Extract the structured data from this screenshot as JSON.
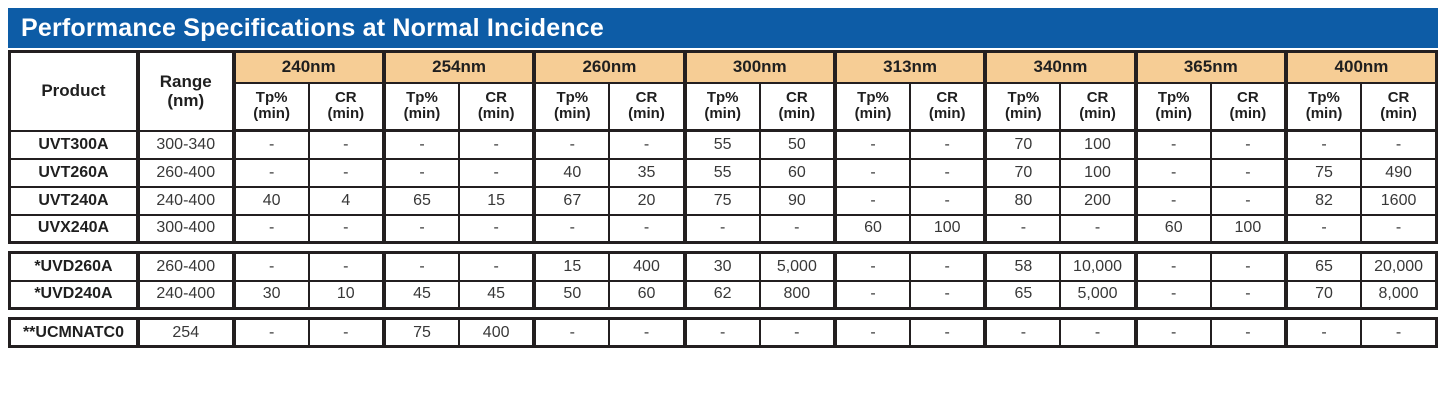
{
  "title": "Performance Specifications at Normal Incidence",
  "colors": {
    "title_bg": "#0d5ca6",
    "wavelength_bg": "#f6cd95",
    "border": "#231f20"
  },
  "header": {
    "product": "Product",
    "range": "Range\n(nm)",
    "tp": "Tp%\n(min)",
    "cr": "CR\n(min)",
    "wavelengths": [
      "240nm",
      "254nm",
      "260nm",
      "300nm",
      "313nm",
      "340nm",
      "365nm",
      "400nm"
    ]
  },
  "sections": [
    {
      "rows": [
        {
          "product": "UVT300A",
          "range": "300-340",
          "values": [
            "-",
            "-",
            "-",
            "-",
            "-",
            "-",
            "55",
            "50",
            "-",
            "-",
            "70",
            "100",
            "-",
            "-",
            "-",
            "-"
          ]
        },
        {
          "product": "UVT260A",
          "range": "260-400",
          "values": [
            "-",
            "-",
            "-",
            "-",
            "40",
            "35",
            "55",
            "60",
            "-",
            "-",
            "70",
            "100",
            "-",
            "-",
            "75",
            "490"
          ]
        },
        {
          "product": "UVT240A",
          "range": "240-400",
          "values": [
            "40",
            "4",
            "65",
            "15",
            "67",
            "20",
            "75",
            "90",
            "-",
            "-",
            "80",
            "200",
            "-",
            "-",
            "82",
            "1600"
          ]
        },
        {
          "product": "UVX240A",
          "range": "300-400",
          "values": [
            "-",
            "-",
            "-",
            "-",
            "-",
            "-",
            "-",
            "-",
            "60",
            "100",
            "-",
            "-",
            "60",
            "100",
            "-",
            "-"
          ]
        }
      ]
    },
    {
      "rows": [
        {
          "product": "*UVD260A",
          "range": "260-400",
          "values": [
            "-",
            "-",
            "-",
            "-",
            "15",
            "400",
            "30",
            "5,000",
            "-",
            "-",
            "58",
            "10,000",
            "-",
            "-",
            "65",
            "20,000"
          ]
        },
        {
          "product": "*UVD240A",
          "range": "240-400",
          "values": [
            "30",
            "10",
            "45",
            "45",
            "50",
            "60",
            "62",
            "800",
            "-",
            "-",
            "65",
            "5,000",
            "-",
            "-",
            "70",
            "8,000"
          ]
        }
      ]
    },
    {
      "rows": [
        {
          "product": "**UCMNATC0",
          "range": "254",
          "values": [
            "-",
            "-",
            "75",
            "400",
            "-",
            "-",
            "-",
            "-",
            "-",
            "-",
            "-",
            "-",
            "-",
            "-",
            "-",
            "-"
          ]
        }
      ]
    }
  ]
}
